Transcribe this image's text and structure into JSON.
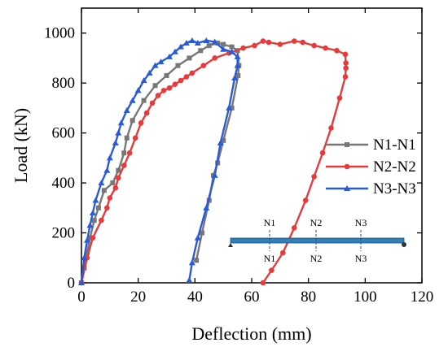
{
  "chart_data": {
    "type": "line",
    "xlabel": "Deflection (mm)",
    "ylabel": "Load (kN)",
    "xlim": [
      0,
      120
    ],
    "ylim": [
      0,
      1100
    ],
    "xticks": [
      0,
      20,
      40,
      60,
      80,
      100,
      120
    ],
    "yticks": [
      0,
      200,
      400,
      600,
      800,
      1000
    ],
    "legend_position": "right",
    "series": [
      {
        "name": "N1-N1",
        "color": "#777777",
        "marker": "square",
        "points": [
          [
            0,
            0
          ],
          [
            1,
            60
          ],
          [
            2,
            120
          ],
          [
            3,
            180
          ],
          [
            4.5,
            250
          ],
          [
            6,
            300
          ],
          [
            8,
            370
          ],
          [
            11,
            400
          ],
          [
            13,
            450
          ],
          [
            15,
            520
          ],
          [
            16,
            580
          ],
          [
            18,
            650
          ],
          [
            22,
            730
          ],
          [
            26,
            790
          ],
          [
            30,
            830
          ],
          [
            34,
            870
          ],
          [
            38,
            900
          ],
          [
            42,
            930
          ],
          [
            45,
            950
          ],
          [
            48,
            960
          ],
          [
            50,
            955
          ],
          [
            53,
            945
          ],
          [
            55,
            930
          ],
          [
            55.5,
            870
          ],
          [
            55.2,
            830
          ],
          [
            53,
            700
          ],
          [
            50,
            570
          ],
          [
            48,
            480
          ],
          [
            46.5,
            430
          ],
          [
            45,
            330
          ],
          [
            42.5,
            200
          ],
          [
            40.5,
            90
          ]
        ]
      },
      {
        "name": "N2-N2",
        "color": "#e83a3a",
        "marker": "circle",
        "points": [
          [
            0,
            0
          ],
          [
            2,
            100
          ],
          [
            4,
            180
          ],
          [
            7,
            250
          ],
          [
            9,
            300
          ],
          [
            10,
            340
          ],
          [
            12,
            380
          ],
          [
            13,
            420
          ],
          [
            15,
            470
          ],
          [
            17,
            520
          ],
          [
            19,
            580
          ],
          [
            21,
            640
          ],
          [
            23,
            680
          ],
          [
            25,
            720
          ],
          [
            27,
            750
          ],
          [
            29,
            770
          ],
          [
            31,
            780
          ],
          [
            33,
            795
          ],
          [
            35,
            810
          ],
          [
            37,
            825
          ],
          [
            39,
            840
          ],
          [
            43,
            870
          ],
          [
            47,
            900
          ],
          [
            52,
            920
          ],
          [
            57,
            940
          ],
          [
            61,
            950
          ],
          [
            64,
            968
          ],
          [
            66,
            963
          ],
          [
            70,
            955
          ],
          [
            75,
            968
          ],
          [
            78,
            963
          ],
          [
            82,
            950
          ],
          [
            86,
            940
          ],
          [
            90,
            930
          ],
          [
            93,
            915
          ],
          [
            93.2,
            880
          ],
          [
            93.2,
            860
          ],
          [
            93,
            825
          ],
          [
            91,
            740
          ],
          [
            88,
            620
          ],
          [
            85,
            520
          ],
          [
            82,
            425
          ],
          [
            79,
            330
          ],
          [
            75,
            220
          ],
          [
            71,
            120
          ],
          [
            67,
            50
          ],
          [
            64,
            0
          ]
        ]
      },
      {
        "name": "N3-N3",
        "color": "#2a5bd7",
        "marker": "triangle",
        "points": [
          [
            0,
            0
          ],
          [
            1,
            100
          ],
          [
            2,
            170
          ],
          [
            3,
            230
          ],
          [
            4,
            280
          ],
          [
            5,
            330
          ],
          [
            7,
            400
          ],
          [
            9,
            450
          ],
          [
            10,
            500
          ],
          [
            12,
            560
          ],
          [
            13,
            600
          ],
          [
            14,
            640
          ],
          [
            16,
            690
          ],
          [
            18,
            730
          ],
          [
            20,
            770
          ],
          [
            22,
            810
          ],
          [
            24,
            840
          ],
          [
            26,
            870
          ],
          [
            28,
            885
          ],
          [
            31,
            905
          ],
          [
            33,
            925
          ],
          [
            35,
            945
          ],
          [
            37,
            960
          ],
          [
            39,
            970
          ],
          [
            41,
            960
          ],
          [
            44,
            970
          ],
          [
            47,
            965
          ],
          [
            50,
            935
          ],
          [
            53,
            925
          ],
          [
            55,
            905
          ],
          [
            55,
            870
          ],
          [
            54,
            820
          ],
          [
            52,
            700
          ],
          [
            49,
            560
          ],
          [
            47,
            430
          ],
          [
            44,
            300
          ],
          [
            41,
            180
          ],
          [
            39,
            80
          ],
          [
            38,
            10
          ]
        ]
      }
    ],
    "inset": {
      "labels_top": [
        "N1",
        "N2",
        "N3"
      ],
      "labels_bottom": [
        "N1",
        "N2",
        "N3"
      ]
    }
  }
}
